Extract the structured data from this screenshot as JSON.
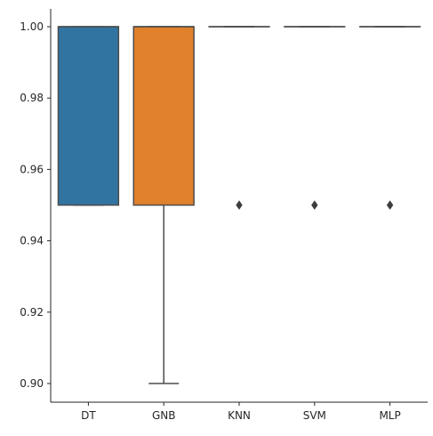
{
  "chart_data": {
    "type": "box",
    "title": "",
    "xlabel": "",
    "ylabel": "",
    "categories": [
      "DT",
      "GNB",
      "KNN",
      "SVM",
      "MLP"
    ],
    "boxes": [
      {
        "name": "DT",
        "whisker_low": 0.95,
        "q1": 0.95,
        "median": 1.0,
        "q3": 1.0,
        "whisker_high": 1.0,
        "outliers": [],
        "color": "#3274a1"
      },
      {
        "name": "GNB",
        "whisker_low": 0.9,
        "q1": 0.95,
        "median": 1.0,
        "q3": 1.0,
        "whisker_high": 1.0,
        "outliers": [],
        "color": "#e1812c"
      },
      {
        "name": "KNN",
        "whisker_low": 1.0,
        "q1": 1.0,
        "median": 1.0,
        "q3": 1.0,
        "whisker_high": 1.0,
        "outliers": [
          0.95
        ],
        "color": "#3a923a"
      },
      {
        "name": "SVM",
        "whisker_low": 1.0,
        "q1": 1.0,
        "median": 1.0,
        "q3": 1.0,
        "whisker_high": 1.0,
        "outliers": [
          0.95
        ],
        "color": "#c03d3e"
      },
      {
        "name": "MLP",
        "whisker_low": 1.0,
        "q1": 1.0,
        "median": 1.0,
        "q3": 1.0,
        "whisker_high": 1.0,
        "outliers": [
          0.95
        ],
        "color": "#9372b2"
      }
    ],
    "ylim": [
      0.895,
      1.005
    ],
    "yticks": [
      "0.90",
      "0.92",
      "0.94",
      "0.96",
      "0.98",
      "1.00"
    ],
    "grid": false,
    "legend": "none",
    "line_color": "#4d4d4d"
  }
}
